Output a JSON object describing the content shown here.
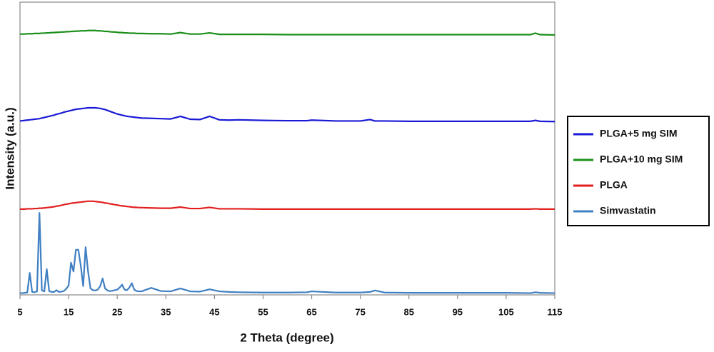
{
  "chart_data": {
    "type": "line",
    "x_label": "2 Theta (degree)",
    "y_label": "Intensity (a.u.)",
    "xlim": [
      5,
      115
    ],
    "xticks": [
      5,
      15,
      25,
      35,
      45,
      55,
      65,
      75,
      85,
      95,
      105,
      115
    ],
    "ylim": [
      0,
      100
    ],
    "x": [
      5,
      5.5,
      6,
      6.5,
      7,
      7.5,
      8,
      8.5,
      9,
      9.5,
      10,
      10.5,
      11,
      11.5,
      12,
      12.5,
      13,
      13.5,
      14,
      14.5,
      15,
      15.5,
      16,
      16.5,
      17,
      17.5,
      18,
      18.5,
      19,
      19.5,
      20,
      20.5,
      21,
      21.5,
      22,
      22.5,
      23,
      23.5,
      24,
      24.5,
      25,
      25.5,
      26,
      26.5,
      27,
      27.5,
      28,
      28.5,
      29,
      29.5,
      30,
      32,
      34,
      36,
      38,
      40,
      42,
      44,
      46,
      48,
      50,
      55,
      60,
      64,
      65,
      70,
      75,
      77,
      78,
      80,
      85,
      90,
      95,
      100,
      105,
      110,
      111,
      112,
      115
    ],
    "series": [
      {
        "name": "PLGA+5 mg SIM",
        "color": "#1a1ad6",
        "values": [
          59.4,
          59.5,
          59.6,
          59.7,
          59.8,
          59.9,
          60.0,
          60.1,
          60.2,
          60.4,
          60.6,
          60.8,
          61.0,
          61.2,
          61.4,
          61.7,
          61.9,
          62.1,
          62.4,
          62.6,
          62.8,
          63.0,
          63.2,
          63.4,
          63.5,
          63.6,
          63.7,
          63.8,
          63.9,
          63.9,
          63.9,
          63.9,
          63.8,
          63.7,
          63.5,
          63.3,
          63.0,
          62.7,
          62.4,
          62.1,
          61.8,
          61.6,
          61.4,
          61.2,
          61.0,
          60.9,
          60.8,
          60.7,
          60.6,
          60.5,
          60.4,
          60.3,
          60.2,
          60.1,
          61.0,
          60.0,
          59.9,
          61.0,
          59.8,
          59.7,
          59.8,
          59.6,
          59.5,
          59.5,
          59.7,
          59.4,
          59.4,
          59.9,
          59.4,
          59.4,
          59.3,
          59.3,
          59.3,
          59.3,
          59.3,
          59.3,
          59.6,
          59.3,
          59.2
        ]
      },
      {
        "name": "PLGA+10 mg SIM",
        "color": "#1b8f1b",
        "values": [
          89.1,
          89.1,
          89.1,
          89.2,
          89.2,
          89.2,
          89.3,
          89.3,
          89.3,
          89.4,
          89.4,
          89.5,
          89.5,
          89.6,
          89.6,
          89.7,
          89.7,
          89.8,
          89.8,
          89.9,
          89.9,
          90.0,
          90.0,
          90.1,
          90.1,
          90.2,
          90.2,
          90.2,
          90.3,
          90.3,
          90.3,
          90.3,
          90.2,
          90.2,
          90.1,
          90.0,
          90.0,
          89.9,
          89.8,
          89.8,
          89.7,
          89.6,
          89.6,
          89.5,
          89.5,
          89.4,
          89.4,
          89.4,
          89.3,
          89.3,
          89.3,
          89.2,
          89.2,
          89.1,
          89.6,
          89.1,
          89.1,
          89.5,
          89.0,
          89.0,
          89.0,
          89.0,
          88.9,
          88.9,
          88.9,
          88.9,
          88.9,
          88.9,
          88.9,
          88.9,
          88.9,
          88.9,
          88.9,
          88.9,
          88.9,
          88.9,
          89.4,
          88.9,
          88.8
        ]
      },
      {
        "name": "PLGA",
        "color": "#e21f1f",
        "values": [
          29.3,
          29.3,
          29.3,
          29.4,
          29.4,
          29.4,
          29.5,
          29.5,
          29.6,
          29.6,
          29.7,
          29.8,
          29.9,
          30.0,
          30.1,
          30.3,
          30.4,
          30.6,
          30.8,
          31.0,
          31.1,
          31.3,
          31.4,
          31.5,
          31.6,
          31.7,
          31.8,
          31.9,
          32.0,
          32.0,
          32.0,
          31.9,
          31.8,
          31.7,
          31.6,
          31.4,
          31.3,
          31.1,
          31.0,
          30.8,
          30.7,
          30.5,
          30.4,
          30.3,
          30.2,
          30.1,
          30.0,
          29.9,
          29.9,
          29.8,
          29.8,
          29.7,
          29.6,
          29.6,
          30.0,
          29.5,
          29.5,
          29.9,
          29.4,
          29.4,
          29.4,
          29.3,
          29.3,
          29.3,
          29.3,
          29.3,
          29.3,
          29.3,
          29.3,
          29.3,
          29.3,
          29.3,
          29.3,
          29.3,
          29.3,
          29.3,
          29.4,
          29.3,
          29.3
        ]
      },
      {
        "name": "Simvastatin",
        "color": "#3f7fc2",
        "values": [
          0.6,
          0.6,
          0.7,
          0.8,
          7.5,
          1.0,
          0.9,
          1.2,
          28,
          1.5,
          1.2,
          8.8,
          1.3,
          1.0,
          1.0,
          1.6,
          1.0,
          1.1,
          1.3,
          2.0,
          3.2,
          11,
          8,
          15.4,
          15.4,
          10,
          3,
          16.3,
          8,
          2.2,
          1.6,
          1.5,
          1.8,
          3,
          5.6,
          2.2,
          1.5,
          1.3,
          1.4,
          1.6,
          1.8,
          2.5,
          3.5,
          1.8,
          1.6,
          2.5,
          4,
          1.8,
          1.3,
          1.2,
          1.2,
          2.4,
          1.3,
          1.2,
          2.2,
          1.2,
          1.1,
          1.9,
          1.2,
          1.0,
          0.9,
          0.8,
          0.8,
          0.9,
          1.2,
          0.8,
          0.8,
          1.0,
          1.5,
          0.8,
          0.7,
          0.7,
          0.7,
          0.7,
          0.7,
          0.6,
          0.9,
          0.7,
          0.6
        ]
      }
    ]
  }
}
